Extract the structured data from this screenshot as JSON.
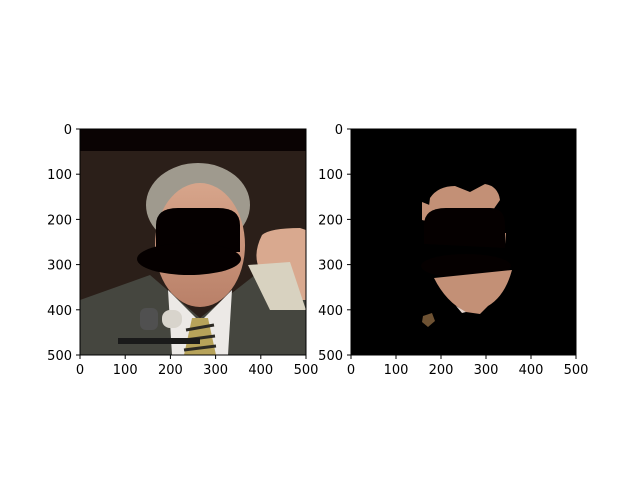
{
  "chart_data": [
    {
      "type": "image",
      "title": "",
      "xlabel": "",
      "ylabel": "",
      "xlim": [
        0,
        500
      ],
      "ylim": [
        500,
        0
      ],
      "xticks": [
        0,
        100,
        200,
        300,
        400,
        500
      ],
      "yticks": [
        0,
        100,
        200,
        300,
        400,
        500
      ],
      "content": "photo with bowler hat mask",
      "colors": {
        "background": "#2b1f19",
        "top_band": "#0a0303",
        "suit": "#45463f",
        "shirt": "#ece9e6",
        "skin": "#c39076",
        "hair": "#9f9a8e",
        "hat": "#050000",
        "tie": "#b7a35a"
      }
    },
    {
      "type": "image",
      "title": "",
      "xlabel": "",
      "ylabel": "",
      "xlim": [
        0,
        500
      ],
      "ylim": [
        500,
        0
      ],
      "xticks": [
        0,
        100,
        200,
        300,
        400,
        500
      ],
      "yticks": [
        0,
        100,
        200,
        300,
        400,
        500
      ],
      "content": "segmented skin mask",
      "colors": {
        "background": "#000000",
        "skin": "#c39076",
        "hat": "#050000"
      }
    }
  ]
}
